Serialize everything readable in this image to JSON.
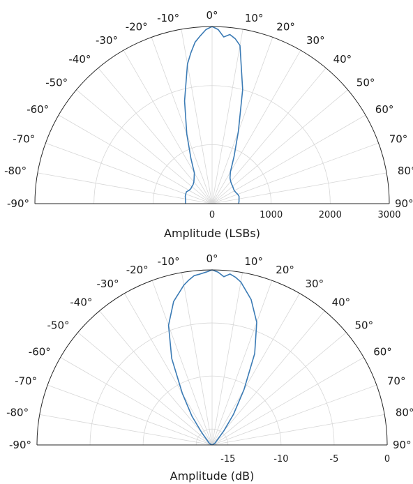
{
  "chart_data": [
    {
      "type": "polar",
      "xlabel": "Amplitude (LSBs)",
      "radial_ticks": [
        0,
        1000,
        2000,
        3000
      ],
      "radial_tick_labels": [
        "0",
        "1000",
        "2000",
        "3000"
      ],
      "rlim": [
        0,
        3000
      ],
      "theta_lim": [
        -90,
        90
      ],
      "theta_zero": "top",
      "theta_ticks": [
        -90,
        -80,
        -70,
        -60,
        -50,
        -40,
        -30,
        -20,
        -10,
        0,
        10,
        20,
        30,
        40,
        50,
        60,
        70,
        80,
        90
      ],
      "theta_tick_labels": [
        "-90°",
        "-80°",
        "-70°",
        "-60°",
        "-50°",
        "-40°",
        "-30°",
        "-20°",
        "-10°",
        "0°",
        "10°",
        "20°",
        "30°",
        "40°",
        "50°",
        "60°",
        "70°",
        "80°",
        "90°"
      ],
      "grid": true,
      "series": [
        {
          "color": "#3b7bb5",
          "theta": [
            -90,
            -85,
            -80,
            -75,
            -70,
            -65,
            -60,
            -55,
            -50,
            -45,
            -40,
            -35,
            -30,
            -25,
            -20,
            -15,
            -10,
            -8,
            -6,
            -4,
            -2,
            0,
            2,
            4,
            6,
            8,
            10,
            15,
            20,
            25,
            30,
            35,
            40,
            45,
            50,
            55,
            60,
            65,
            70,
            75,
            80,
            85,
            90
          ],
          "r": [
            450,
            450,
            457,
            470,
            475,
            478,
            450,
            440,
            447,
            455,
            480,
            530,
            600,
            850,
            1250,
            1800,
            2400,
            2580,
            2750,
            2850,
            2950,
            3000,
            2950,
            2830,
            2880,
            2820,
            2720,
            2000,
            1300,
            880,
            620,
            530,
            490,
            468,
            455,
            442,
            436,
            445,
            462,
            473,
            463,
            458,
            450
          ]
        }
      ]
    },
    {
      "type": "polar",
      "xlabel": "Amplitude (dB)",
      "radial_ticks": [
        -15,
        -10,
        -5,
        0
      ],
      "radial_tick_labels": [
        "-15",
        "-10",
        "-5",
        "0"
      ],
      "rlim": [
        -16.5,
        0
      ],
      "theta_lim": [
        -90,
        90
      ],
      "theta_zero": "top",
      "theta_ticks": [
        -90,
        -80,
        -70,
        -60,
        -50,
        -40,
        -30,
        -20,
        -10,
        0,
        10,
        20,
        30,
        40,
        50,
        60,
        70,
        80,
        90
      ],
      "theta_tick_labels": [
        "-90°",
        "-80°",
        "-70°",
        "-60°",
        "-50°",
        "-40°",
        "-30°",
        "-20°",
        "-10°",
        "0°",
        "10°",
        "20°",
        "30°",
        "40°",
        "50°",
        "60°",
        "70°",
        "80°",
        "90°"
      ],
      "grid": true,
      "series": [
        {
          "color": "#3b7bb5",
          "theta": [
            -90,
            -60,
            -40,
            -35,
            -30,
            -25,
            -20,
            -15,
            -10,
            -8,
            -6,
            -4,
            -2,
            0,
            2,
            4,
            6,
            8,
            10,
            15,
            20,
            25,
            30,
            35,
            40,
            60,
            90
          ],
          "r": [
            -16.5,
            -16.2,
            -15.0,
            -13.2,
            -10.9,
            -7.5,
            -4.5,
            -2.5,
            -1.2,
            -0.8,
            -0.45,
            -0.35,
            -0.2,
            0,
            -0.2,
            -0.6,
            -0.3,
            -0.55,
            -0.9,
            -2.3,
            -4.2,
            -7.0,
            -10.5,
            -13.0,
            -14.8,
            -16.2,
            -16.5
          ]
        }
      ]
    }
  ]
}
